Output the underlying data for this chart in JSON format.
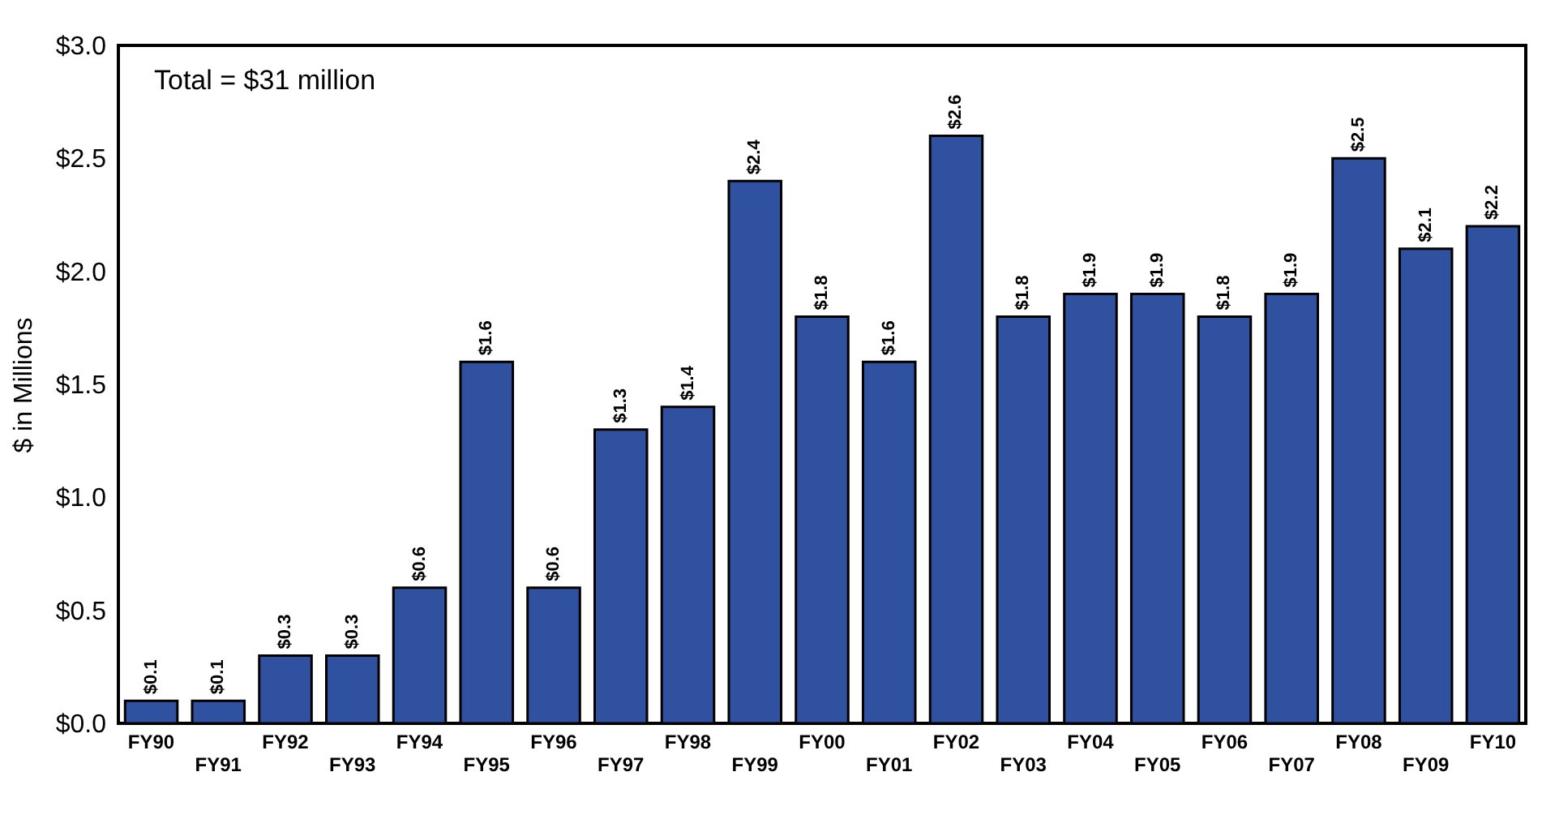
{
  "chart_data": {
    "type": "bar",
    "ylabel": "$ in Millions",
    "annotations": [
      "Total = $31 million"
    ],
    "categories": [
      "FY90",
      "FY91",
      "FY92",
      "FY93",
      "FY94",
      "FY95",
      "FY96",
      "FY97",
      "FY98",
      "FY99",
      "FY00",
      "FY01",
      "FY02",
      "FY03",
      "FY04",
      "FY05",
      "FY06",
      "FY07",
      "FY08",
      "FY09",
      "FY10"
    ],
    "values": [
      0.1,
      0.1,
      0.3,
      0.3,
      0.6,
      1.6,
      0.6,
      1.3,
      1.4,
      2.4,
      1.8,
      1.6,
      2.6,
      1.8,
      1.9,
      1.9,
      1.8,
      1.9,
      2.5,
      2.1,
      2.2
    ],
    "value_labels": [
      "$0.1",
      "$0.1",
      "$0.3",
      "$0.3",
      "$0.6",
      "$1.6",
      "$0.6",
      "$1.3",
      "$1.4",
      "$2.4",
      "$1.8",
      "$1.6",
      "$2.6",
      "$1.8",
      "$1.9",
      "$1.9",
      "$1.8",
      "$1.9",
      "$2.5",
      "$2.1",
      "$2.2"
    ],
    "color": "#3050a0",
    "ylim": [
      0,
      3
    ],
    "yticks": [
      {
        "value": 0,
        "label": "$0.0"
      },
      {
        "value": 0.5,
        "label": "$0.5"
      },
      {
        "value": 1,
        "label": "$1.0"
      },
      {
        "value": 1.5,
        "label": "$1.5"
      },
      {
        "value": 2,
        "label": "$2.0"
      },
      {
        "value": 2.5,
        "label": "$2.5"
      },
      {
        "value": 3,
        "label": "$3.0"
      }
    ],
    "grid": false
  }
}
